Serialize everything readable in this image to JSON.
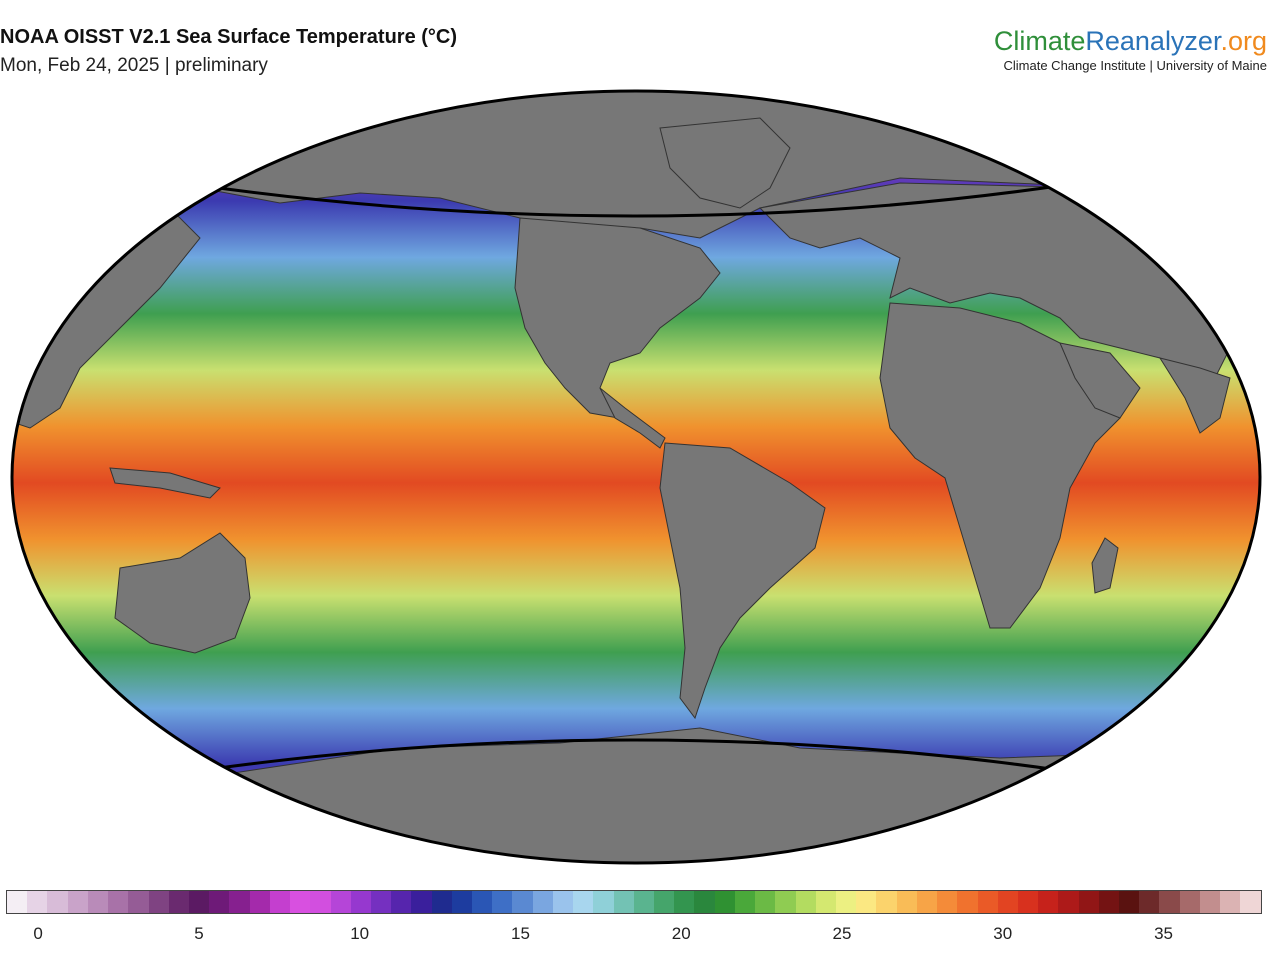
{
  "header": {
    "title": "NOAA OISST V2.1 Sea Surface Temperature (°C)",
    "subtitle": "Mon, Feb 24, 2025 | preliminary"
  },
  "brand": {
    "name_part1": "Climate",
    "name_part2": "Reanalyzer",
    "name_part3": ".org",
    "tagline": "Climate Change Institute | University of Maine"
  },
  "colorbar": {
    "min": -1,
    "max": 38,
    "ticks": [
      "0",
      "5",
      "10",
      "15",
      "20",
      "25",
      "30",
      "35"
    ],
    "colors": [
      "#f4eef4",
      "#e6d3e6",
      "#d8bcd8",
      "#c9a3c9",
      "#b98bb9",
      "#a872a8",
      "#955c96",
      "#7f4382",
      "#6a2a6f",
      "#5b1a63",
      "#6e1a78",
      "#86208f",
      "#a42aab",
      "#c43fcf",
      "#d850e0",
      "#d24fdf",
      "#b545d8",
      "#9638cf",
      "#7530c0",
      "#5625ad",
      "#3a1f9c",
      "#1f2b8f",
      "#1d3c9f",
      "#2a56b5",
      "#3e6fc6",
      "#5a89d2",
      "#7aa6e0",
      "#9ac3ec",
      "#a8d6ee",
      "#8fd0d8",
      "#73c2b4",
      "#5ab48f",
      "#45a56b",
      "#33954f",
      "#2a873d",
      "#2f9132",
      "#4aa83a",
      "#6bba45",
      "#8fcc52",
      "#b3dc60",
      "#d4e870",
      "#ecf082",
      "#fbe882",
      "#fbd36c",
      "#f9bc57",
      "#f7a447",
      "#f48b39",
      "#f0722e",
      "#ea5a27",
      "#e24422",
      "#d8311e",
      "#c6221b",
      "#ad1a19",
      "#911616",
      "#741313",
      "#5a1210",
      "#6d2a2a",
      "#8a4a4a",
      "#a66a6a",
      "#c28e8e",
      "#dbb3b3",
      "#efd6d6"
    ]
  },
  "map": {
    "ocean_band_colors": [
      "#7a4a90",
      "#a03ac8",
      "#3b3ab0",
      "#6fa8e0",
      "#3f9f50",
      "#c9e070",
      "#f0922e",
      "#e24a22",
      "#f0922e",
      "#c9e070",
      "#3f9f50",
      "#6fa8e0",
      "#3b3ab0",
      "#a03ac8",
      "#8a6a90"
    ],
    "land_color": "#777777",
    "land_outline_color": "#333333"
  }
}
